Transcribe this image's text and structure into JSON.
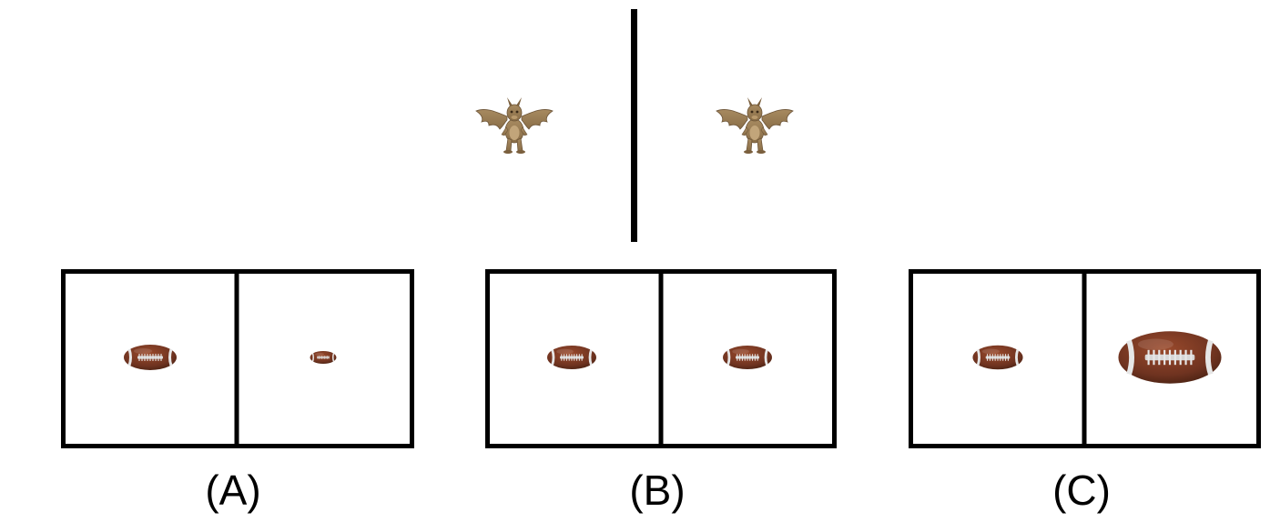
{
  "figure": {
    "reference": {
      "left_item": "dragon-icon",
      "right_item": "dragon-icon",
      "divider": "vertical-line"
    },
    "options": [
      {
        "label": "(A)",
        "left_item": "football-icon",
        "right_item": "football-icon",
        "right_relative_size": "smaller"
      },
      {
        "label": "(B)",
        "left_item": "football-icon",
        "right_item": "football-icon",
        "right_relative_size": "same"
      },
      {
        "label": "(C)",
        "left_item": "football-icon",
        "right_item": "football-icon",
        "right_relative_size": "larger"
      }
    ],
    "colors": {
      "line": "#000000",
      "background": "#ffffff",
      "dragon": "#9b8058",
      "dragon_dark": "#6d5538",
      "football": "#7a3a22",
      "football_dark": "#4f2414",
      "lace": "#d7d7d7",
      "stripe": "#e6e6e6"
    }
  }
}
